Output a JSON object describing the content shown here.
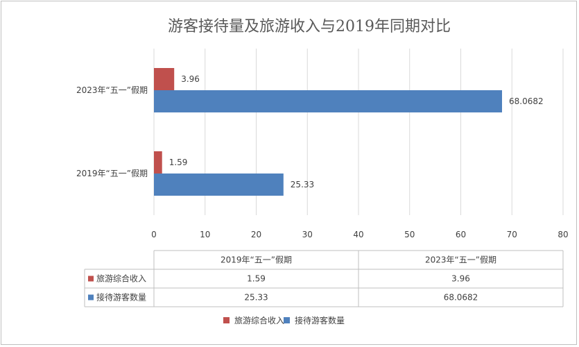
{
  "chart_data": {
    "type": "bar",
    "orientation": "horizontal",
    "title": "游客接待量及旅游收入与2019年同期对比",
    "categories": [
      "2019年“五一”假期",
      "2023年“五一”假期"
    ],
    "series": [
      {
        "name": "旅游综合收入",
        "color": "#c0504d",
        "values": [
          1.59,
          3.96
        ],
        "labels": [
          "1.59",
          "3.96"
        ]
      },
      {
        "name": "接待游客数量",
        "color": "#4f81bd",
        "values": [
          25.33,
          68.0682
        ],
        "labels": [
          "25.33",
          "68.0682"
        ]
      }
    ],
    "xlim": [
      0,
      80
    ],
    "xticks": [
      "0",
      "10",
      "20",
      "30",
      "40",
      "50",
      "60",
      "70",
      "80"
    ],
    "grid": true,
    "legend_position": "bottom",
    "data_table": true
  }
}
